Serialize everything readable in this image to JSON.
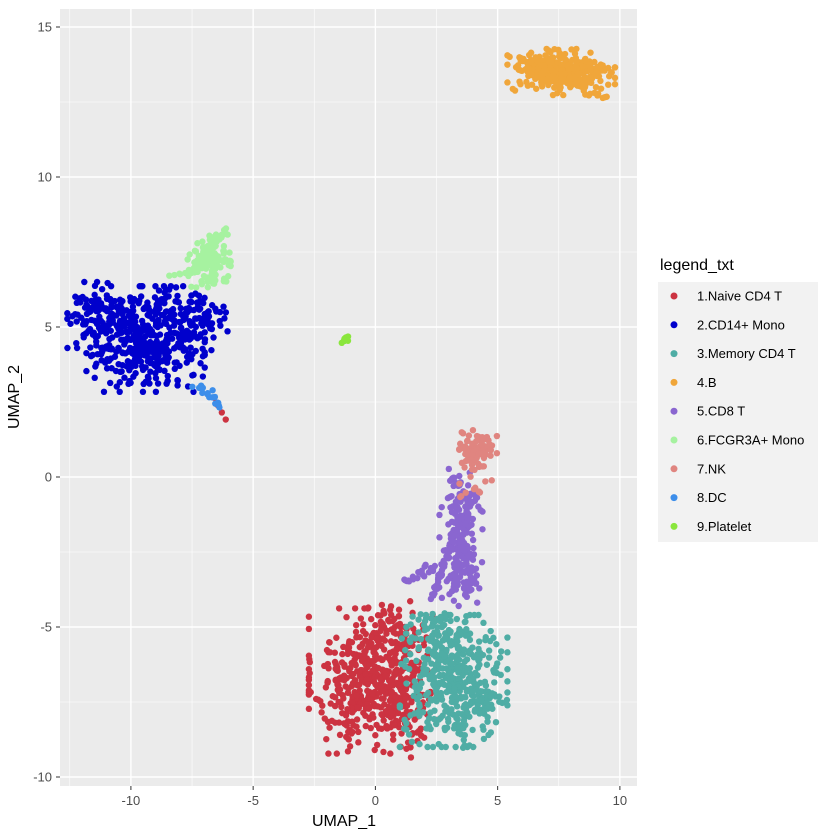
{
  "chart_data": {
    "type": "scatter",
    "xlabel": "UMAP_1",
    "ylabel": "UMAP_2",
    "xlim": [
      -12.9,
      10.7
    ],
    "ylim": [
      -10.3,
      15.6
    ],
    "x_ticks": [
      -10,
      -5,
      0,
      5,
      10
    ],
    "y_ticks": [
      -10,
      -5,
      0,
      5,
      10,
      15
    ],
    "grid": true,
    "legend_title": "legend_txt",
    "legend_position": "right",
    "series": [
      {
        "name": "1.Naive CD4 T",
        "color": "#CC3341",
        "clusters": [
          {
            "center": [
              -0.3,
              -6.8
            ],
            "spread": [
              1.1,
              1.1
            ],
            "n": 420
          },
          {
            "center": [
              1.2,
              -7.2
            ],
            "spread": [
              0.6,
              1.0
            ],
            "n": 120
          },
          {
            "center": [
              0.8,
              -5.1
            ],
            "spread": [
              0.7,
              0.5
            ],
            "n": 60
          }
        ],
        "lines": [
          {
            "from": [
              -6.6,
              2.5
            ],
            "to": [
              -6.1,
              2.0
            ],
            "n": 4
          }
        ]
      },
      {
        "name": "2.CD14+ Mono",
        "color": "#0000CC",
        "clusters": [
          {
            "center": [
              -9.4,
              4.6
            ],
            "spread": [
              1.1,
              0.8
            ],
            "n": 420
          },
          {
            "center": [
              -11.5,
              5.4
            ],
            "spread": [
              0.5,
              0.5
            ],
            "n": 80
          },
          {
            "center": [
              -7.3,
              5.3
            ],
            "spread": [
              0.6,
              0.5
            ],
            "n": 80
          }
        ]
      },
      {
        "name": "3.Memory CD4 T",
        "color": "#4FADA5",
        "clusters": [
          {
            "center": [
              3.2,
              -6.8
            ],
            "spread": [
              1.0,
              1.0
            ],
            "n": 380
          },
          {
            "center": [
              4.5,
              -7.6
            ],
            "spread": [
              0.4,
              0.4
            ],
            "n": 40
          },
          {
            "center": [
              2.4,
              -5.2
            ],
            "spread": [
              0.6,
              0.4
            ],
            "n": 50
          }
        ],
        "lines": [
          {
            "from": [
              3.6,
              -8.6
            ],
            "to": [
              3.6,
              -9.1
            ],
            "n": 5
          }
        ]
      },
      {
        "name": "4.B",
        "color": "#F0A63A",
        "clusters": [
          {
            "center": [
              7.6,
              13.5
            ],
            "spread": [
              1.0,
              0.35
            ],
            "n": 320
          }
        ],
        "lines": [
          {
            "from": [
              5.8,
              14.0
            ],
            "to": [
              9.4,
              12.6
            ],
            "n": 40
          }
        ]
      },
      {
        "name": "5.CD8 T",
        "color": "#8A66D0",
        "lines": [
          {
            "from": [
              2.3,
              -4.0
            ],
            "to": [
              3.6,
              -1.2
            ],
            "n": 60
          },
          {
            "from": [
              3.2,
              -3.5
            ],
            "to": [
              4.0,
              -0.5
            ],
            "n": 60
          },
          {
            "from": [
              1.2,
              -3.5
            ],
            "to": [
              2.5,
              -3.0
            ],
            "n": 20
          },
          {
            "from": [
              3.0,
              0.1
            ],
            "to": [
              3.8,
              -0.7
            ],
            "n": 15
          }
        ],
        "clusters": [
          {
            "center": [
              3.6,
              -3.2
            ],
            "spread": [
              0.4,
              0.5
            ],
            "n": 80
          },
          {
            "center": [
              3.5,
              -1.3
            ],
            "spread": [
              0.4,
              0.7
            ],
            "n": 70
          }
        ]
      },
      {
        "name": "6.FCGR3A+ Mono",
        "color": "#A6F2A0",
        "clusters": [
          {
            "center": [
              -6.8,
              7.2
            ],
            "spread": [
              0.4,
              0.4
            ],
            "n": 110
          }
        ],
        "lines": [
          {
            "from": [
              -7.6,
              6.7
            ],
            "to": [
              -6.1,
              8.3
            ],
            "n": 30
          },
          {
            "from": [
              -8.5,
              6.8
            ],
            "to": [
              -7.2,
              6.9
            ],
            "n": 8
          }
        ]
      },
      {
        "name": "7.NK",
        "color": "#E08580",
        "clusters": [
          {
            "center": [
              4.2,
              0.9
            ],
            "spread": [
              0.35,
              0.3
            ],
            "n": 90
          },
          {
            "center": [
              4.1,
              -0.4
            ],
            "spread": [
              0.3,
              0.3
            ],
            "n": 12
          }
        ]
      },
      {
        "name": "8.DC",
        "color": "#3D8EEA",
        "lines": [
          {
            "from": [
              -7.3,
              3.1
            ],
            "to": [
              -6.3,
              2.3
            ],
            "n": 16
          }
        ]
      },
      {
        "name": "9.Platelet",
        "color": "#8AE63D",
        "clusters": [
          {
            "center": [
              -1.2,
              4.6
            ],
            "spread": [
              0.08,
              0.08
            ],
            "n": 10
          }
        ]
      }
    ]
  }
}
